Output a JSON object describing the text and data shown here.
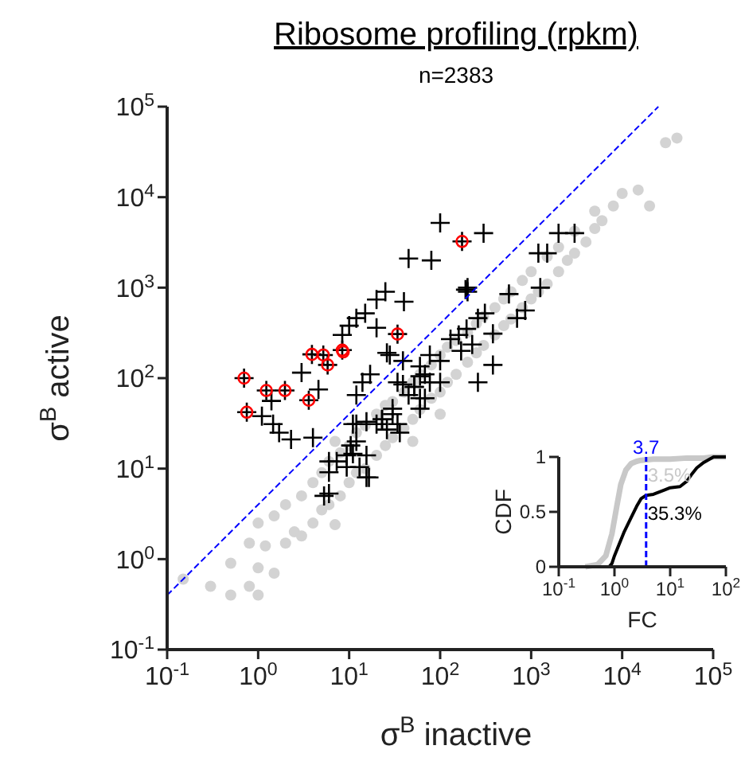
{
  "chart_data": [
    {
      "type": "scatter",
      "title": "Ribosome profiling (rpkm)",
      "subtitle": "n=2383",
      "xlabel": "σ$^{B}$ inactive",
      "ylabel": "σ$^{B}$ active",
      "log": "xy",
      "xlim": [
        0.1,
        100000
      ],
      "ylim": [
        0.1,
        100000
      ],
      "xticks": [
        {
          "value": 0.1,
          "label": "10$^{-1}$"
        },
        {
          "value": 1,
          "label": "10$^{0}$"
        },
        {
          "value": 10,
          "label": "10$^{1}$"
        },
        {
          "value": 100,
          "label": "10$^{2}$"
        },
        {
          "value": 1000,
          "label": "10$^{3}$"
        },
        {
          "value": 10000,
          "label": "10$^{4}$"
        },
        {
          "value": 100000,
          "label": "10$^{5}$"
        }
      ],
      "yticks": [
        {
          "value": 0.1,
          "label": "10$^{-1}$"
        },
        {
          "value": 1,
          "label": "10$^{0}$"
        },
        {
          "value": 10,
          "label": "10$^{1}$"
        },
        {
          "value": 100,
          "label": "10$^{2}$"
        },
        {
          "value": 1000,
          "label": "10$^{3}$"
        },
        {
          "value": 10000,
          "label": "10$^{4}$"
        },
        {
          "value": 100000,
          "label": "10$^{5}$"
        }
      ],
      "grid": false,
      "series": [
        {
          "marker": "circle",
          "color": "#d3d3d3",
          "x": [
            0.15,
            0.3,
            0.5,
            0.8,
            0.8,
            1,
            1,
            1.2,
            1.5,
            1.5,
            2,
            2,
            2.5,
            3,
            3,
            4,
            4,
            5,
            5,
            6,
            6,
            8,
            8,
            10,
            10,
            12,
            12,
            15,
            15,
            20,
            20,
            25,
            25,
            30,
            30,
            40,
            40,
            50,
            50,
            60,
            60,
            80,
            80,
            100,
            100,
            120,
            120,
            150,
            150,
            200,
            200,
            250,
            250,
            300,
            300,
            400,
            400,
            500,
            500,
            600,
            600,
            800,
            800,
            1000,
            1000,
            1200,
            1500,
            1500,
            2000,
            2000,
            2500,
            3000,
            3000,
            4000,
            5000,
            5000,
            6000,
            8000,
            10000,
            15000,
            40000,
            30000,
            20000,
            1,
            0.5,
            7,
            7,
            50,
            100
          ],
          "values": [
            0.6,
            0.5,
            0.9,
            0.5,
            1.5,
            0.8,
            2.5,
            1.4,
            0.7,
            3,
            1.5,
            4,
            2,
            1.8,
            5,
            2.5,
            7,
            3.5,
            9,
            4,
            12,
            5,
            15,
            7,
            18,
            9,
            25,
            10,
            30,
            14,
            40,
            18,
            50,
            22,
            55,
            28,
            70,
            35,
            90,
            45,
            110,
            60,
            140,
            70,
            180,
            90,
            220,
            110,
            260,
            150,
            320,
            190,
            400,
            230,
            480,
            300,
            600,
            380,
            750,
            450,
            900,
            600,
            1200,
            750,
            1500,
            900,
            1100,
            2200,
            1500,
            2800,
            2000,
            2400,
            4200,
            3200,
            4500,
            7000,
            5500,
            8000,
            11000,
            12000,
            45000,
            40000,
            8000,
            0.4,
            0.4,
            20,
            2.4,
            20,
            40
          ]
        },
        {
          "marker": "cross",
          "color": "#000000",
          "x": [
            100,
            45,
            80,
            300,
            2000,
            3000,
            1200,
            1500,
            200,
            200,
            40,
            20,
            25,
            15,
            12,
            10,
            8.4,
            20,
            26,
            3,
            4.6,
            1.4,
            1.1,
            1.46,
            1.7,
            2.3,
            4,
            12,
            14,
            17,
            28,
            39,
            11,
            15.5,
            20,
            23,
            26,
            34,
            36,
            12,
            7.3,
            9.4,
            11,
            13,
            6,
            16.5,
            6,
            5.3,
            60,
            77,
            100,
            130,
            160,
            195,
            225,
            170,
            260,
            310,
            190,
            60,
            77,
            52,
            39,
            45,
            68,
            30,
            60,
            6,
            10.4,
            15.5,
            15.5,
            9.4,
            12,
            23,
            30,
            34,
            60,
            52,
            100,
            68,
            260,
            380,
            700,
            860,
            570,
            1260,
            380,
            0.7,
            0.75,
            1.23,
            1.97,
            3.6,
            3.9,
            5.2,
            5.8,
            8.4,
            34,
            174
          ],
          "values": [
            5200,
            2100,
            2000,
            4000,
            4000,
            4000,
            2400,
            2400,
            1000,
            900,
            700,
            740,
            900,
            520,
            460,
            380,
            300,
            360,
            190,
            115,
            75,
            56,
            38,
            31,
            25,
            21,
            22,
            65,
            90,
            110,
            180,
            155,
            31,
            33,
            31,
            35,
            27,
            31,
            25,
            20,
            12,
            14,
            14.6,
            10.4,
            9.1,
            8,
            5.3,
            5,
            135,
            180,
            155,
            270,
            300,
            350,
            235,
            200,
            460,
            520,
            950,
            105,
            90,
            80,
            85,
            65,
            60,
            46,
            46,
            12,
            18,
            14,
            8,
            10.4,
            31,
            35,
            40,
            90,
            60,
            80,
            90,
            110,
            90,
            310,
            460,
            560,
            850,
            1000,
            140,
            100,
            42,
            73,
            73,
            57,
            183,
            180,
            140,
            204,
            307,
            3240
          ]
        },
        {
          "marker": "circle",
          "color": "#ff0000",
          "x": [
            0.7,
            0.75,
            1.23,
            1.97,
            3.6,
            3.9,
            5.2,
            5.8,
            8.4,
            8.6,
            34,
            174
          ],
          "values": [
            100,
            42,
            73,
            73,
            57,
            183,
            180,
            140,
            204,
            195,
            307,
            3240
          ]
        },
        {
          "type": "line",
          "line_style": "dashed",
          "color": "#0000ff",
          "x": [
            0.1,
            25000
          ],
          "values": [
            0.4,
            100000
          ]
        }
      ]
    },
    {
      "type": "line",
      "xlabel": "FC",
      "ylabel": "CDF",
      "log": "x",
      "xlim": [
        0.1,
        100
      ],
      "ylim": [
        0,
        1
      ],
      "xticks": [
        {
          "value": 0.1,
          "label": "10$^{-1}$"
        },
        {
          "value": 1,
          "label": "10$^{0}$"
        },
        {
          "value": 10,
          "label": "10$^{1}$"
        },
        {
          "value": 100,
          "label": "10$^{2}$"
        }
      ],
      "yticks": [
        0,
        0.5,
        1
      ],
      "grid": false,
      "series": [
        {
          "color": "#c8c8c8",
          "x": [
            0.3,
            0.5,
            0.7,
            0.9,
            1.1,
            1.3,
            1.6,
            2,
            2.5,
            3,
            5,
            10,
            20,
            40,
            60,
            100
          ],
          "values": [
            0,
            0.02,
            0.1,
            0.3,
            0.55,
            0.75,
            0.88,
            0.94,
            0.96,
            0.97,
            0.98,
            0.98,
            0.99,
            0.99,
            1,
            1
          ]
        },
        {
          "color": "#000000",
          "x": [
            0.8,
            0.9,
            1,
            1.2,
            1.5,
            2,
            2.5,
            3,
            3.7,
            5,
            8,
            10,
            15,
            20,
            25,
            30,
            40,
            60,
            100
          ],
          "values": [
            0,
            0.03,
            0.1,
            0.2,
            0.32,
            0.45,
            0.55,
            0.62,
            0.65,
            0.66,
            0.7,
            0.72,
            0.73,
            0.78,
            0.85,
            0.9,
            0.95,
            1,
            1
          ]
        }
      ],
      "ref_lines": [
        {
          "axis": "x",
          "value": 3.7,
          "label": "3.7",
          "color": "#0000ff",
          "line_style": "dashed"
        }
      ],
      "annotations": [
        {
          "text": "3.5%",
          "x": 3.7,
          "y": 0.85
        },
        {
          "text": "35.3%",
          "x": 3.7,
          "y": 0.5
        }
      ]
    }
  ]
}
